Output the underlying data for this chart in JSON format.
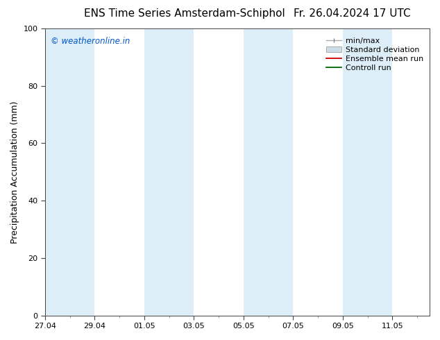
{
  "title_left": "ENS Time Series Amsterdam-Schiphol",
  "title_right": "Fr. 26.04.2024 17 UTC",
  "ylabel": "Precipitation Accumulation (mm)",
  "watermark": "© weatheronline.in",
  "watermark_color": "#0055cc",
  "ylim": [
    0,
    100
  ],
  "yticks": [
    0,
    20,
    40,
    60,
    80,
    100
  ],
  "xtick_labels": [
    "27.04",
    "29.04",
    "01.05",
    "03.05",
    "05.05",
    "07.05",
    "09.05",
    "11.05"
  ],
  "xtick_positions": [
    0,
    2,
    4,
    6,
    8,
    10,
    12,
    14
  ],
  "shade_color": "#ddeef8",
  "background_color": "#ffffff",
  "shade_bands": [
    [
      0,
      2
    ],
    [
      4,
      6
    ],
    [
      8,
      10
    ],
    [
      12,
      14
    ]
  ],
  "xlim": [
    0,
    15.5
  ],
  "title_fontsize": 11,
  "axis_fontsize": 9,
  "tick_fontsize": 8,
  "legend_fontsize": 8
}
